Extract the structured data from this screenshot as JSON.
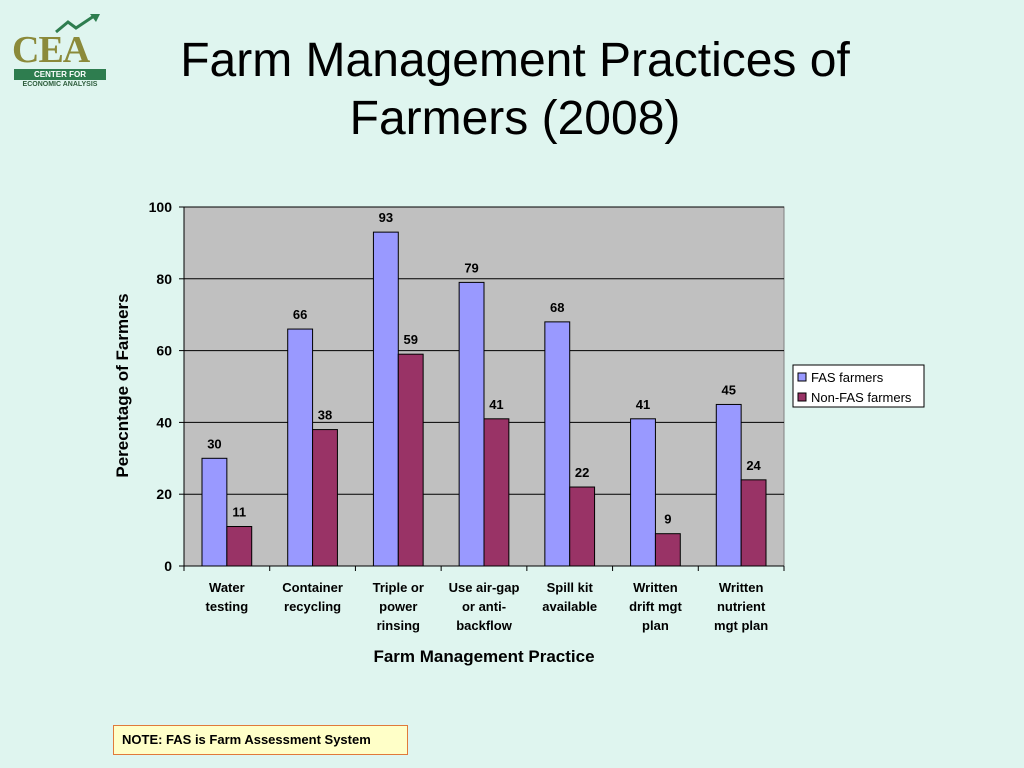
{
  "logo": {
    "letters": "CEA",
    "line1": "CENTER FOR",
    "line2": "ECONOMIC ANALYSIS"
  },
  "slide": {
    "title_line1": "Farm Management Practices of",
    "title_line2": "Farmers (2008)"
  },
  "note": "NOTE: FAS is Farm Assessment System",
  "colors": {
    "fas": "#9999ff",
    "non_fas": "#993366",
    "plot_bg": "#c0c0c0",
    "background": "#dff5ef"
  },
  "chart_data": {
    "type": "bar",
    "categories": [
      [
        "Water",
        "testing"
      ],
      [
        "Container",
        "recycling"
      ],
      [
        "Triple or",
        "power",
        "rinsing"
      ],
      [
        "Use air-gap",
        "or anti-",
        "backflow"
      ],
      [
        "Spill kit",
        "available"
      ],
      [
        "Written",
        "drift mgt",
        "plan"
      ],
      [
        "Written",
        "nutrient",
        "mgt plan"
      ]
    ],
    "series": [
      {
        "name": "FAS farmers",
        "values": [
          30,
          66,
          93,
          79,
          68,
          41,
          45
        ]
      },
      {
        "name": "Non-FAS farmers",
        "values": [
          11,
          38,
          59,
          41,
          22,
          9,
          24
        ]
      }
    ],
    "xlabel": "Farm Management Practice",
    "ylabel": "Perecntage of Farmers",
    "ylim": [
      0,
      100
    ],
    "yticks": [
      0,
      20,
      40,
      60,
      80,
      100
    ],
    "grid": true,
    "legend": "right"
  }
}
